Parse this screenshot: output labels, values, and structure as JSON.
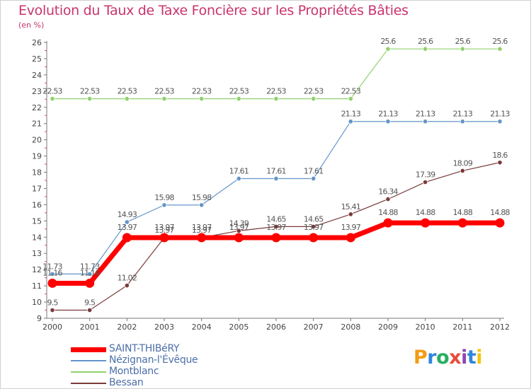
{
  "title": "Evolution du Taux de Taxe Foncière sur les Propriétés Bâties",
  "subtitle": "(en %)",
  "brand": {
    "letters": [
      "P",
      "r",
      "o",
      "x",
      "i",
      "t",
      "i"
    ],
    "colors": [
      "#f39c12",
      "#2e86de",
      "#27ae60",
      "#e74c3c",
      "#8e44ad",
      "#2e86de",
      "#f1c40f"
    ]
  },
  "chart_data": {
    "type": "line",
    "title": "Evolution du Taux de Taxe Foncière sur les Propriétés Bâties",
    "ylabel": "(en %)",
    "xlabel": "",
    "categories": [
      "2000",
      "2001",
      "2002",
      "2003",
      "2004",
      "2005",
      "2006",
      "2007",
      "2008",
      "2009",
      "2010",
      "2011",
      "2012"
    ],
    "ylim": [
      9,
      26
    ],
    "yticks": [
      9,
      10,
      11,
      12,
      13,
      14,
      15,
      16,
      17,
      18,
      19,
      20,
      21,
      22,
      23,
      24,
      25,
      26
    ],
    "grid": false,
    "legend_position": "bottom-left",
    "series": [
      {
        "name": "SAINT-THIBéRY",
        "color": "#ff0000",
        "width": 7,
        "values": [
          11.16,
          11.16,
          13.97,
          13.97,
          13.97,
          13.97,
          13.97,
          13.97,
          13.97,
          14.88,
          14.88,
          14.88,
          14.88
        ],
        "labels": [
          "11.16",
          "11.16",
          "13.97",
          "13.97",
          "13.97",
          "13.97",
          "13.97",
          "13.97",
          "13.97",
          "14.88",
          "14.88",
          "14.88",
          "14.88"
        ]
      },
      {
        "name": "Nézignan-l'Évêque",
        "color": "#6495c8",
        "width": 1.2,
        "values": [
          11.73,
          11.73,
          14.93,
          15.98,
          15.98,
          17.61,
          17.61,
          17.61,
          21.13,
          21.13,
          21.13,
          21.13,
          21.13
        ],
        "labels": [
          "11.73",
          "11.73",
          "14.93",
          "15.98",
          "15.98",
          "17.61",
          "17.61",
          "17.61",
          "21.13",
          "21.13",
          "21.13",
          "21.13",
          "21.13"
        ]
      },
      {
        "name": "Montblanc",
        "color": "#8fd16b",
        "width": 1.2,
        "values": [
          22.53,
          22.53,
          22.53,
          22.53,
          22.53,
          22.53,
          22.53,
          22.53,
          22.53,
          25.6,
          25.6,
          25.6,
          25.6
        ],
        "labels": [
          "22.53",
          "22.53",
          "22.53",
          "22.53",
          "22.53",
          "22.53",
          "22.53",
          "22.53",
          "22.53",
          "25.6",
          "25.6",
          "25.6",
          "25.6"
        ]
      },
      {
        "name": "Bessan",
        "color": "#7a3a3a",
        "width": 1.2,
        "values": [
          9.5,
          9.5,
          11.02,
          13.97,
          13.97,
          14.39,
          14.65,
          14.65,
          15.41,
          16.34,
          17.39,
          18.09,
          18.6
        ],
        "labels": [
          "9.5",
          "9.5",
          "11.02",
          "13.97",
          "13.97",
          "14.39",
          "14.65",
          "14.65",
          "15.41",
          "16.34",
          "17.39",
          "18.09",
          "18.6"
        ]
      }
    ]
  }
}
